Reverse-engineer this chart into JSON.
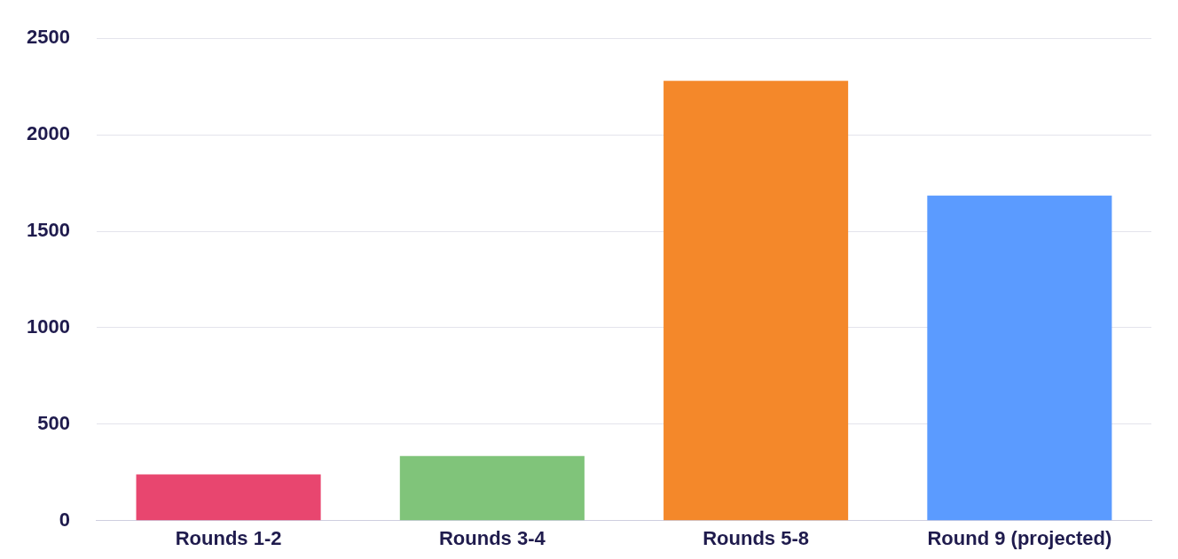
{
  "chart_data": {
    "type": "bar",
    "categories": [
      "Rounds 1-2",
      "Rounds 3-4",
      "Rounds 5-8",
      "Round 9 (projected)"
    ],
    "values": [
      240,
      335,
      2280,
      1685
    ],
    "colors": [
      "#e8466f",
      "#80c47a",
      "#f4882a",
      "#5b9bff"
    ],
    "ylim": [
      0,
      2500
    ],
    "yticks": [
      0,
      500,
      1000,
      1500,
      2000,
      2500
    ],
    "grid": "y",
    "legend": false
  }
}
